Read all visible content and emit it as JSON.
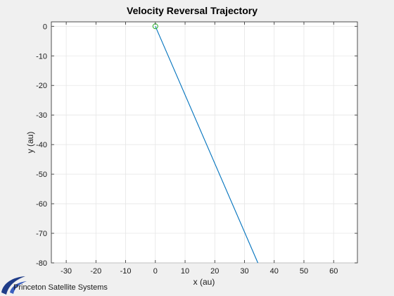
{
  "chart_data": {
    "type": "line",
    "title": "Velocity Reversal Trajectory",
    "xlabel": "x (au)",
    "ylabel": "y (au)",
    "xlim": [
      -35,
      68
    ],
    "ylim": [
      -80,
      1.5
    ],
    "xticks": [
      -30,
      -20,
      -10,
      0,
      10,
      20,
      30,
      40,
      50,
      60
    ],
    "yticks": [
      0,
      -10,
      -20,
      -30,
      -40,
      -50,
      -60,
      -70,
      -80
    ],
    "grid": true,
    "series": [
      {
        "x": [
          0,
          34.5
        ],
        "y": [
          0,
          -80
        ],
        "color": "#0072bd"
      }
    ],
    "markers": [
      {
        "x": 0,
        "y": 0,
        "shape": "circle",
        "color": "#2ab32a"
      }
    ]
  },
  "branding": {
    "logo_text": "Princeton Satellite Systems",
    "logo_color": "#1f3c88"
  }
}
